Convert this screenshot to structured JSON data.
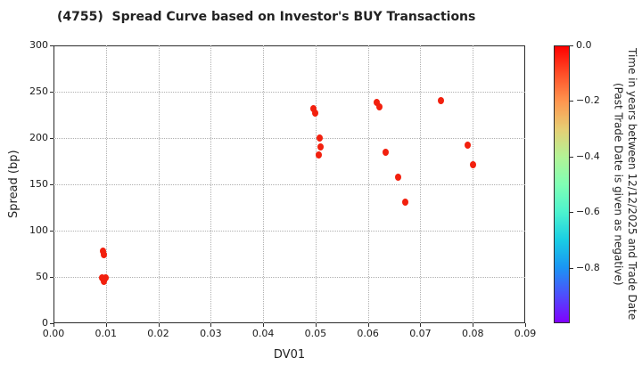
{
  "title": "(4755)  Spread Curve based on Investor's BUY Transactions",
  "axes": {
    "xlabel": "DV01",
    "ylabel": "Spread (bp)",
    "x_tick_labels": [
      "0.00",
      "0.01",
      "0.02",
      "0.03",
      "0.04",
      "0.05",
      "0.06",
      "0.07",
      "0.08",
      "0.09"
    ],
    "x_tick_values": [
      0.0,
      0.01,
      0.02,
      0.03,
      0.04,
      0.05,
      0.06,
      0.07,
      0.08,
      0.09
    ],
    "y_tick_labels": [
      "0",
      "50",
      "100",
      "150",
      "200",
      "250",
      "300"
    ],
    "y_tick_values": [
      0,
      50,
      100,
      150,
      200,
      250,
      300
    ],
    "xlim": [
      0,
      0.09
    ],
    "ylim": [
      0,
      300
    ],
    "grid": true
  },
  "colorbar": {
    "label": "Time in years between 12/12/2025 and Trade Date\n(Past Trade Date is given as negative)",
    "tick_labels": [
      "0.0",
      "−0.2",
      "−0.4",
      "−0.6",
      "−0.8"
    ],
    "tick_values": [
      0,
      -0.2,
      -0.4,
      -0.6,
      -0.8
    ],
    "value_range": [
      0,
      -1.0
    ],
    "colormap": "rainbow-reversed",
    "gradient_stops": [
      [
        "0%",
        "#ff0000"
      ],
      [
        "10%",
        "#ff4f28"
      ],
      [
        "20%",
        "#ff964f"
      ],
      [
        "30%",
        "#e6ce74"
      ],
      [
        "40%",
        "#b3f396"
      ],
      [
        "50%",
        "#80ffb4"
      ],
      [
        "60%",
        "#4df3ce"
      ],
      [
        "70%",
        "#1acee3"
      ],
      [
        "80%",
        "#1a96f3"
      ],
      [
        "90%",
        "#4d4ffc"
      ],
      [
        "100%",
        "#8000ff"
      ]
    ]
  },
  "chart_data": {
    "type": "scatter",
    "title": "(4755)  Spread Curve based on Investor's BUY Transactions",
    "xlabel": "DV01",
    "ylabel": "Spread (bp)",
    "xlim": [
      0,
      0.09
    ],
    "ylim": [
      0,
      300
    ],
    "grid": true,
    "legend_position": "colorbar-right",
    "marker_color": "#f2200e",
    "color_value_label": "Time in years between 12/12/2025 and Trade Date (Past Trade Date is given as negative)",
    "points": [
      {
        "x": 0.0095,
        "y": 78,
        "t": 0.0
      },
      {
        "x": 0.0096,
        "y": 74,
        "t": 0.0
      },
      {
        "x": 0.0093,
        "y": 49.5,
        "t": 0.0
      },
      {
        "x": 0.0099,
        "y": 49,
        "t": 0.0
      },
      {
        "x": 0.0096,
        "y": 45.5,
        "t": 0.0
      },
      {
        "x": 0.0496,
        "y": 232,
        "t": 0.0
      },
      {
        "x": 0.0499,
        "y": 227,
        "t": 0.0
      },
      {
        "x": 0.0508,
        "y": 200,
        "t": 0.0
      },
      {
        "x": 0.0509,
        "y": 190,
        "t": 0.0
      },
      {
        "x": 0.0506,
        "y": 182,
        "t": 0.0
      },
      {
        "x": 0.0617,
        "y": 238,
        "t": 0.0
      },
      {
        "x": 0.0621,
        "y": 234,
        "t": 0.0
      },
      {
        "x": 0.0634,
        "y": 185,
        "t": 0.0
      },
      {
        "x": 0.0657,
        "y": 158,
        "t": 0.0
      },
      {
        "x": 0.0672,
        "y": 131,
        "t": 0.0
      },
      {
        "x": 0.074,
        "y": 240,
        "t": 0.0
      },
      {
        "x": 0.079,
        "y": 192,
        "t": 0.0
      },
      {
        "x": 0.0801,
        "y": 171,
        "t": 0.0
      }
    ]
  }
}
